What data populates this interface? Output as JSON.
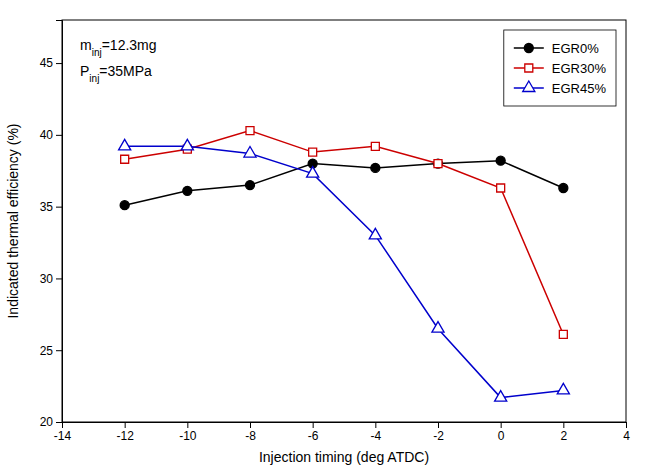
{
  "chart_data": {
    "type": "line",
    "xlabel": "Injection timing (deg ATDC)",
    "ylabel": "Indicated thermal efficiency (%)",
    "x": [
      -12,
      -10,
      -8,
      -6,
      -4,
      -2,
      0,
      2
    ],
    "series": [
      {
        "name": "EGR0%",
        "color": "#000000",
        "marker": "circle",
        "values": [
          35.1,
          36.1,
          36.5,
          38.0,
          37.7,
          38.0,
          38.2,
          36.3
        ]
      },
      {
        "name": "EGR30%",
        "color": "#cc0000",
        "marker": "square-open",
        "values": [
          38.3,
          39.0,
          40.3,
          38.8,
          39.2,
          38.0,
          36.3,
          26.1
        ]
      },
      {
        "name": "EGR45%",
        "color": "#0000cc",
        "marker": "triangle-open",
        "values": [
          39.2,
          39.2,
          38.7,
          37.3,
          33.0,
          26.5,
          21.7,
          22.2
        ]
      }
    ],
    "xlim": [
      -14,
      4
    ],
    "ylim": [
      20,
      48
    ],
    "xticks": [
      -14,
      -12,
      -10,
      -8,
      -6,
      -4,
      -2,
      0,
      2,
      4
    ],
    "yticks": [
      20,
      25,
      30,
      35,
      40,
      45
    ],
    "legend": "upper right",
    "grid": false,
    "annotations": [
      "minj=12.3mg",
      "Pinj=35MPa"
    ]
  }
}
